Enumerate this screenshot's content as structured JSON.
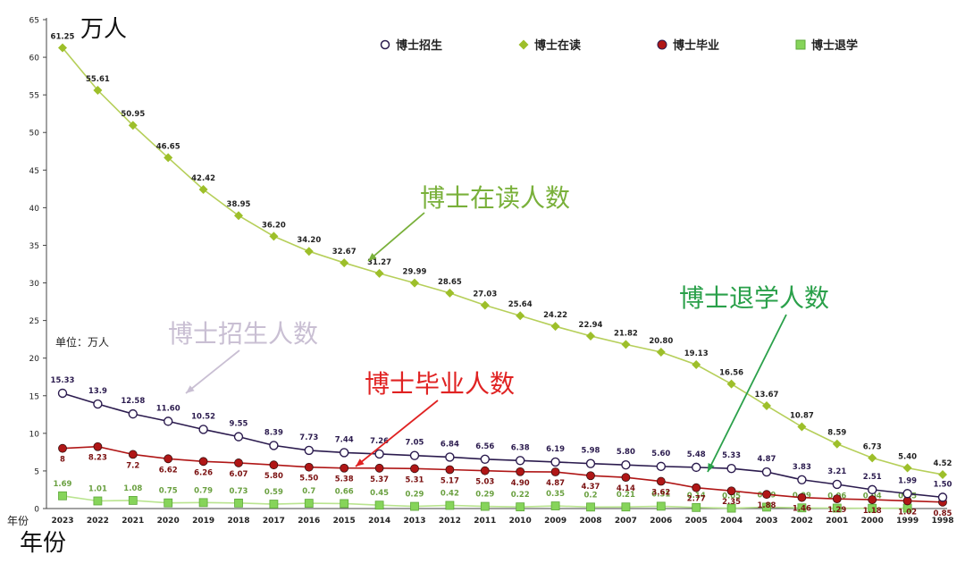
{
  "top_label": "万人",
  "bottom_label": "年份",
  "corner_label": "年份",
  "unit_note": "单位：万人",
  "legend": [
    {
      "name": "博士招生",
      "icon": "hollow-circle",
      "color": "#2b1b4e"
    },
    {
      "name": "博士在读",
      "icon": "diamond",
      "color": "#9dbf2a"
    },
    {
      "name": "博士毕业",
      "icon": "filled-circle",
      "color": "#b01616"
    },
    {
      "name": "博士退学",
      "icon": "square",
      "color": "#86d45a"
    }
  ],
  "callouts": {
    "enrolled": {
      "text": "博士在读人数",
      "color": "#79b03a"
    },
    "dropout": {
      "text": "博士退学人数",
      "color": "#2aa04a"
    },
    "admission": {
      "text": "博士招生人数",
      "color": "#c9bfd3"
    },
    "graduation": {
      "text": "博士毕业人数",
      "color": "#e02222"
    }
  },
  "chart_data": {
    "type": "line",
    "x": [
      "2023",
      "2022",
      "2021",
      "2020",
      "2019",
      "2018",
      "2017",
      "2016",
      "2015",
      "2014",
      "2013",
      "2012",
      "2011",
      "2010",
      "2009",
      "2008",
      "2007",
      "2006",
      "2005",
      "2004",
      "2003",
      "2002",
      "2001",
      "2000",
      "1999",
      "1998"
    ],
    "ylim": [
      0,
      65
    ],
    "yticks": [
      0,
      5,
      10,
      15,
      20,
      25,
      30,
      35,
      40,
      45,
      50,
      55,
      60,
      65
    ],
    "xlabel": "年份",
    "ylabel": "万人",
    "grid": false,
    "legend_position": "top",
    "series": [
      {
        "name": "博士在读",
        "color": "#9dbf2a",
        "marker": "diamond",
        "values": [
          61.25,
          55.61,
          50.95,
          46.65,
          42.42,
          38.95,
          36.2,
          34.2,
          32.67,
          31.27,
          29.99,
          28.65,
          27.03,
          25.64,
          24.22,
          22.94,
          21.82,
          20.8,
          19.13,
          16.56,
          13.67,
          10.87,
          8.59,
          6.73,
          5.4,
          4.52
        ],
        "labels": [
          "61.25",
          "55.61",
          "50.95",
          "46.65",
          "42.42",
          "38.95",
          "36.20",
          "34.20",
          "32.67",
          "31.27",
          "29.99",
          "28.65",
          "27.03",
          "25.64",
          "24.22",
          "22.94",
          "21.82",
          "20.80",
          "19.13",
          "16.56",
          "13.67",
          "10.87",
          "8.59",
          "6.73",
          "5.40",
          "4.52"
        ]
      },
      {
        "name": "博士招生",
        "color": "#2b1b4e",
        "marker": "hollow-circle",
        "values": [
          15.33,
          13.9,
          12.58,
          11.6,
          10.52,
          9.55,
          8.39,
          7.73,
          7.44,
          7.26,
          7.05,
          6.84,
          6.56,
          6.38,
          6.19,
          5.98,
          5.8,
          5.6,
          5.48,
          5.33,
          4.87,
          3.83,
          3.21,
          2.51,
          1.99,
          1.5
        ],
        "labels": [
          "15.33",
          "13.9",
          "12.58",
          "11.60",
          "10.52",
          "9.55",
          "8.39",
          "7.73",
          "7.44",
          "7.26",
          "7.05",
          "6.84",
          "6.56",
          "6.38",
          "6.19",
          "5.98",
          "5.80",
          "5.60",
          "5.48",
          "5.33",
          "4.87",
          "3.83",
          "3.21",
          "2.51",
          "1.99",
          "1.50"
        ]
      },
      {
        "name": "博士毕业",
        "color": "#b01616",
        "marker": "filled-circle",
        "values": [
          8,
          8.23,
          7.2,
          6.62,
          6.26,
          6.07,
          5.8,
          5.5,
          5.38,
          5.37,
          5.31,
          5.17,
          5.03,
          4.9,
          4.87,
          4.37,
          4.14,
          3.62,
          2.77,
          2.35,
          1.88,
          1.46,
          1.29,
          1.18,
          1.02,
          0.85
        ],
        "labels": [
          "8",
          "8.23",
          "7.2",
          "6.62",
          "6.26",
          "6.07",
          "5.80",
          "5.50",
          "5.38",
          "5.37",
          "5.31",
          "5.17",
          "5.03",
          "4.90",
          "4.87",
          "4.37",
          "4.14",
          "3.62",
          "2.77",
          "2.35",
          "1.88",
          "1.46",
          "1.29",
          "1.18",
          "1.02",
          "0.85"
        ]
      },
      {
        "name": "博士退学",
        "color": "#86d45a",
        "marker": "square",
        "values": [
          1.69,
          1.01,
          1.08,
          0.75,
          0.79,
          0.73,
          0.59,
          0.7,
          0.66,
          0.45,
          0.29,
          0.42,
          0.29,
          0.22,
          0.35,
          0.2,
          0.21,
          0.31,
          0.14,
          0.05,
          0.19,
          0.09,
          0.06,
          0.04,
          0.05,
          null
        ],
        "labels": [
          "1.69",
          "1.01",
          "1.08",
          "0.75",
          "0.79",
          "0.73",
          "0.59",
          "0.7",
          "0.66",
          "0.45",
          "0.29",
          "0.42",
          "0.29",
          "0.22",
          "0.35",
          "0.2",
          "0.21",
          "0.31",
          "0.14",
          "0.05",
          "0.19",
          "0.09",
          "0.06",
          "0.04",
          "0.05",
          ""
        ]
      }
    ]
  }
}
